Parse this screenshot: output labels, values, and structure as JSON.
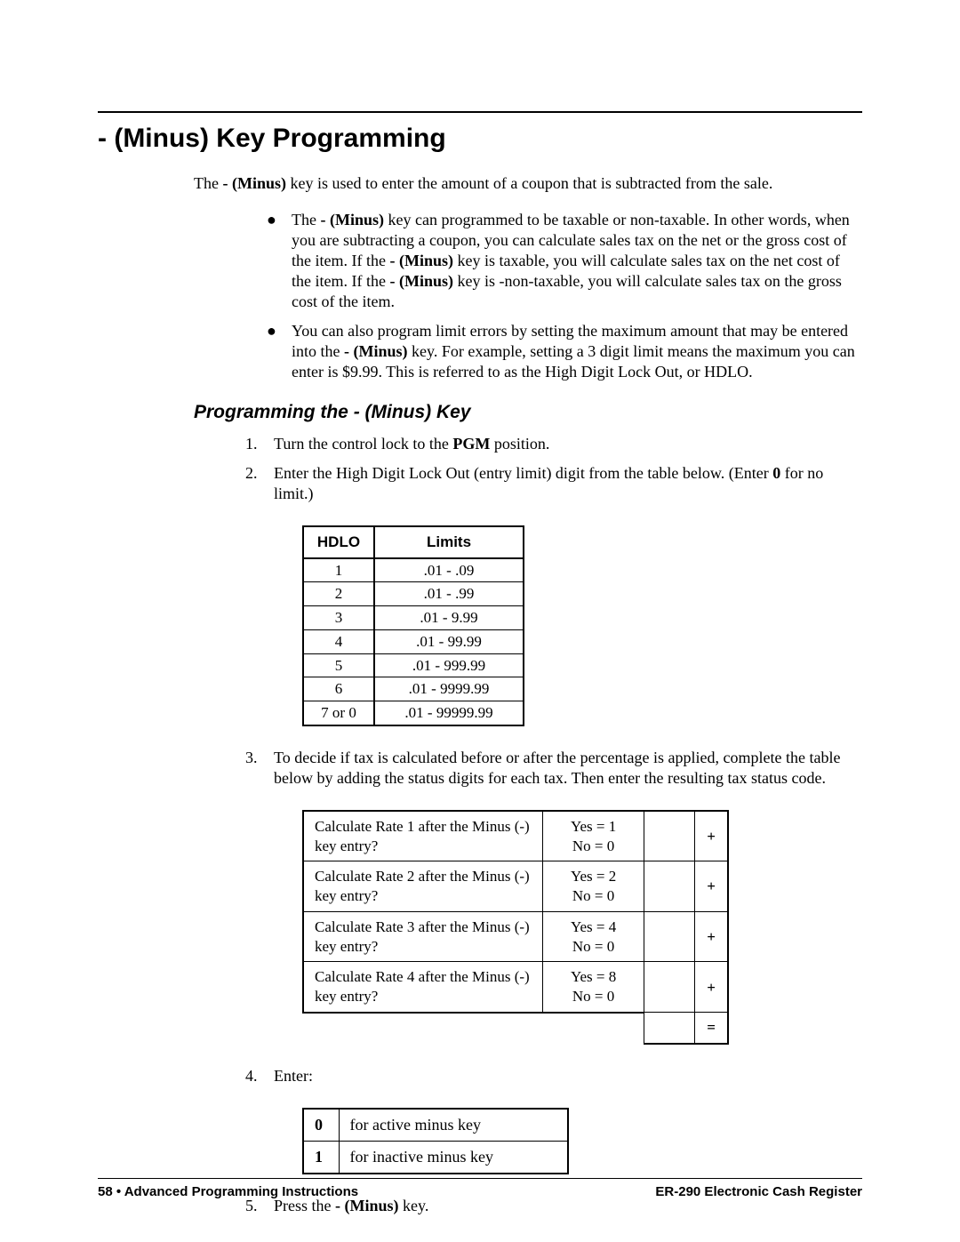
{
  "colors": {
    "text": "#000000",
    "background": "#ffffff",
    "rule": "#000000"
  },
  "fonts": {
    "heading_family": "Arial",
    "heading_size_pt": 22,
    "subhead_size_pt": 15,
    "body_family": "Times New Roman",
    "body_size_pt": 13
  },
  "title": "- (Minus) Key Programming",
  "intro": {
    "pre": "The ",
    "key": "- (Minus)",
    "post": " key is used to enter the amount of a coupon that is subtracted from the sale."
  },
  "bullets": [
    {
      "segments": [
        {
          "t": "The "
        },
        {
          "t": "- (Minus)",
          "b": true
        },
        {
          "t": " key can programmed to be taxable or non-taxable.  In other words, when you are subtracting a coupon, you can calculate sales tax on the net or the gross cost of the item.  If the "
        },
        {
          "t": "- (Minus)",
          "b": true
        },
        {
          "t": " key is taxable, you will calculate sales tax on the net cost of the item.  If the "
        },
        {
          "t": "- (Minus)",
          "b": true
        },
        {
          "t": " key is -non-taxable, you will calculate sales tax on the gross cost of the item."
        }
      ]
    },
    {
      "segments": [
        {
          "t": "You can also program limit errors by setting the maximum amount that may be entered into the "
        },
        {
          "t": "- (Minus)",
          "b": true
        },
        {
          "t": " key.  For example, setting a 3 digit limit means the maximum you can enter is $9.99.  This is referred to as the High Digit Lock Out, or HDLO."
        }
      ]
    }
  ],
  "subhead": "Programming the - (Minus) Key",
  "steps": {
    "1": {
      "segments": [
        {
          "t": "Turn the control lock to the "
        },
        {
          "t": "PGM",
          "b": true
        },
        {
          "t": " position."
        }
      ]
    },
    "2": {
      "segments": [
        {
          "t": "Enter the High Digit Lock Out (entry limit) digit from the table below.  (Enter "
        },
        {
          "t": "0",
          "b": true
        },
        {
          "t": " for no limit.)"
        }
      ]
    },
    "3": {
      "segments": [
        {
          "t": "To decide if tax is calculated before or after the percentage is applied, complete the table below by adding the status digits for each tax.  Then enter the resulting tax status code."
        }
      ]
    },
    "4": {
      "segments": [
        {
          "t": "Enter:"
        }
      ]
    },
    "5": {
      "segments": [
        {
          "t": "Press the "
        },
        {
          "t": "- (Minus)",
          "b": true
        },
        {
          "t": " key."
        }
      ]
    }
  },
  "hdlo_table": {
    "headers": [
      "HDLO",
      "Limits"
    ],
    "rows": [
      [
        "1",
        ".01 - .09"
      ],
      [
        "2",
        ".01 - .99"
      ],
      [
        "3",
        ".01 - 9.99"
      ],
      [
        "4",
        ".01 - 99.99"
      ],
      [
        "5",
        ".01 - 999.99"
      ],
      [
        "6",
        ".01 - 9999.99"
      ],
      [
        "7 or 0",
        ".01 - 99999.99"
      ]
    ]
  },
  "tax_table": {
    "rows": [
      {
        "q": "Calculate Rate 1 after the Minus (-) key entry?",
        "yes": "Yes = 1",
        "no": "No = 0",
        "op": "+"
      },
      {
        "q": "Calculate Rate 2 after the Minus (-) key entry?",
        "yes": "Yes = 2",
        "no": "No = 0",
        "op": "+"
      },
      {
        "q": "Calculate Rate 3 after the Minus (-) key entry?",
        "yes": "Yes = 4",
        "no": "No = 0",
        "op": "+"
      },
      {
        "q": "Calculate Rate 4 after the Minus (-) key entry?",
        "yes": "Yes = 8",
        "no": "No = 0",
        "op": "+"
      }
    ],
    "equals": "="
  },
  "active_table": {
    "rows": [
      [
        "0",
        "for active minus key"
      ],
      [
        "1",
        "for inactive minus key"
      ]
    ]
  },
  "footer": {
    "left_page": "58",
    "left_sep": " • ",
    "left_title": "Advanced Programming Instructions",
    "right": "ER-290 Electronic Cash Register"
  }
}
